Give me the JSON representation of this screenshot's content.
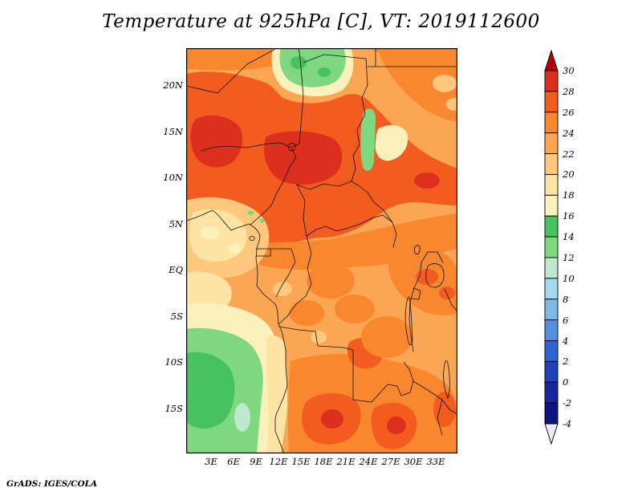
{
  "title": "Temperature at 925hPa [C], VT: 2019112600",
  "footer": "GrADS: IGES/COLA",
  "axes": {
    "lat_labels": [
      "20N",
      "15N",
      "10N",
      "5N",
      "EQ",
      "5S",
      "10S",
      "15S"
    ],
    "lon_labels": [
      "3E",
      "6E",
      "9E",
      "12E",
      "15E",
      "18E",
      "21E",
      "24E",
      "27E",
      "30E",
      "33E"
    ]
  },
  "colorbar": {
    "labels": [
      "30",
      "28",
      "26",
      "24",
      "22",
      "20",
      "18",
      "16",
      "14",
      "12",
      "10",
      "8",
      "6",
      "4",
      "2",
      "0",
      "-2",
      "-4"
    ],
    "segment_colors": [
      "#dd2f1e",
      "#f25c1e",
      "#f8872d",
      "#fba653",
      "#fdc77e",
      "#fde3a4",
      "#fcf0bd",
      "#46c35f",
      "#7fd87f",
      "#bfe9cf",
      "#a6d8f0",
      "#7fb9e8",
      "#5490dd",
      "#2f63cf",
      "#1f41b8",
      "#15279e",
      "#0d1580"
    ],
    "arrow_top_color": "#b30000",
    "arrow_bottom_color": "#e9e9fb"
  },
  "palette": {
    "red28": "#dd2f1e",
    "red26": "#f25c1e",
    "orange24": "#f8872d",
    "orange22": "#fba653",
    "peach20": "#fdc77e",
    "cream18": "#fde3a4",
    "pale16": "#fcf0bd",
    "green14": "#46c35f",
    "green12": "#7fd87f",
    "mint10": "#bfe9cf"
  },
  "chart_data": {
    "type": "heatmap",
    "title": "Temperature at 925hPa [C], VT: 2019112600",
    "variable": "Temperature",
    "level_hPa": 925,
    "units": "C",
    "valid_time": "2019112600",
    "x_ticks": [
      "3E",
      "6E",
      "9E",
      "12E",
      "15E",
      "18E",
      "21E",
      "24E",
      "27E",
      "30E",
      "33E"
    ],
    "y_ticks": [
      "20N",
      "15N",
      "10N",
      "5N",
      "EQ",
      "5S",
      "10S",
      "15S"
    ],
    "colorbar_levels_C": [
      -4,
      -2,
      0,
      2,
      4,
      6,
      8,
      10,
      12,
      14,
      16,
      18,
      20,
      22,
      24,
      26,
      28,
      30
    ],
    "legend_position": "right",
    "approx_region_values_C": [
      {
        "region": "Sahel belt 8N-18N",
        "value": "26-30"
      },
      {
        "region": "Saharan fringe north of 20N",
        "value": "22-26"
      },
      {
        "region": "Tibesti highlands near 15-20E, 20-23N",
        "value": "12-18"
      },
      {
        "region": "Jebel Marra area near 23-25E, 12-17N",
        "value": "14-20"
      },
      {
        "region": "Gulf of Guinea coast",
        "value": "18-22"
      },
      {
        "region": "Congo basin",
        "value": "22-26"
      },
      {
        "region": "SE Atlantic Benguela region off Angola",
        "value": "12-16"
      },
      {
        "region": "Southern Angola - Zambia interior",
        "value": "26-30"
      }
    ]
  }
}
